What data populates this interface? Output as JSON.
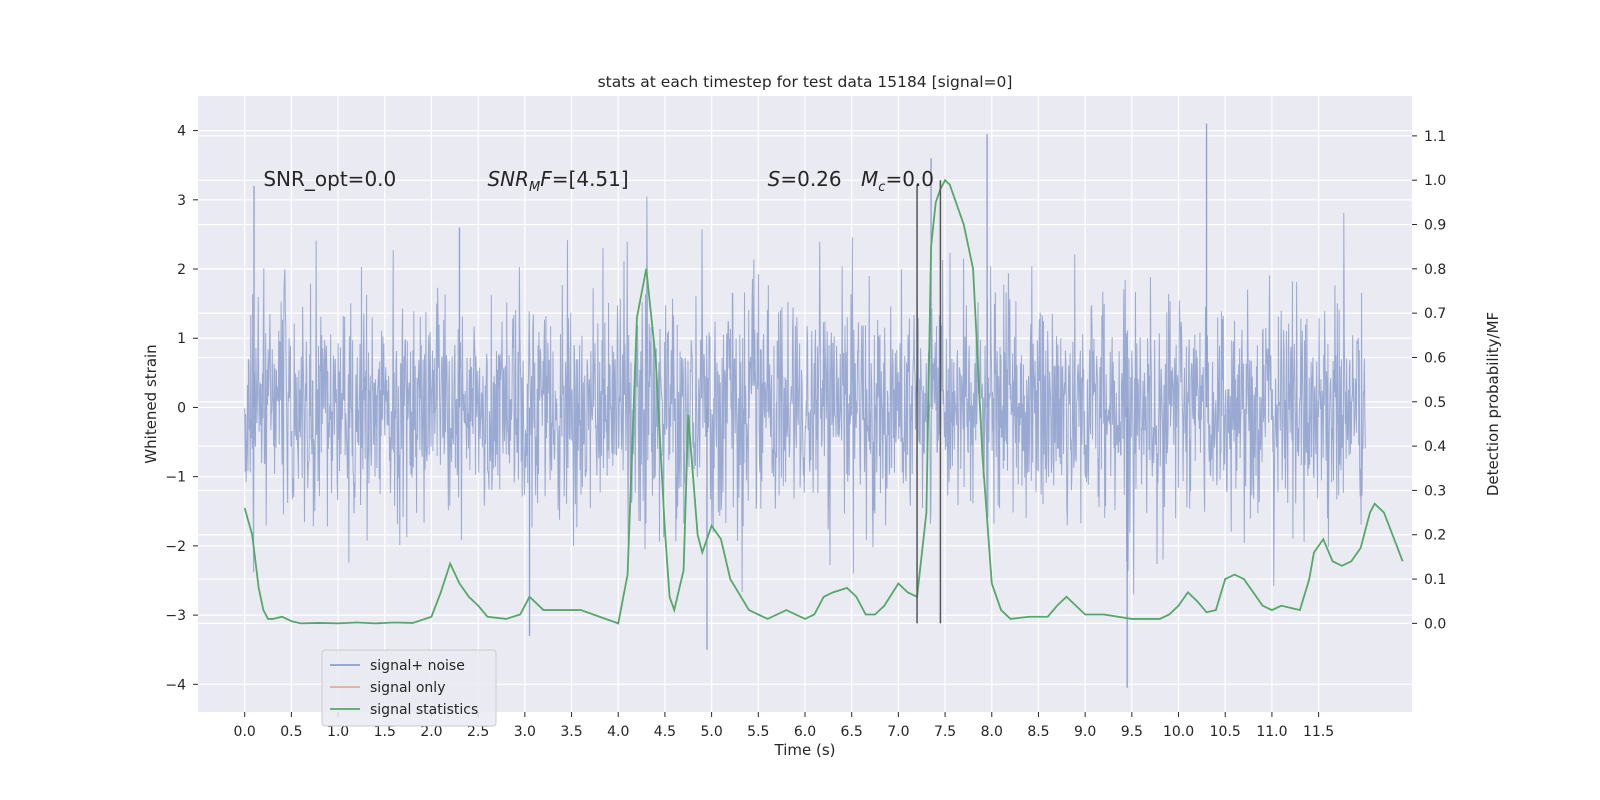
{
  "chart_data": {
    "type": "line",
    "title": "stats at each timestep for test data 15184 [signal=0]",
    "xlabel": "Time (s)",
    "ylabel_left": "Whitened strain",
    "ylabel_right": "Detection probability/MF",
    "xlim": [
      -0.5,
      12.5
    ],
    "ylim_left": [
      -4.4,
      4.5
    ],
    "ylim_right": [
      -0.2,
      1.19
    ],
    "x_ticks": [
      0.0,
      0.5,
      1.0,
      1.5,
      2.0,
      2.5,
      3.0,
      3.5,
      4.0,
      4.5,
      5.0,
      5.5,
      6.0,
      6.5,
      7.0,
      7.5,
      8.0,
      8.5,
      9.0,
      9.5,
      10.0,
      10.5,
      11.0,
      11.5
    ],
    "x_tick_labels": [
      "0.0",
      "0.5",
      "1.0",
      "1.5",
      "2.0",
      "2.5",
      "3.0",
      "3.5",
      "4.0",
      "4.5",
      "5.0",
      "5.5",
      "6.0",
      "6.5",
      "7.0",
      "7.5",
      "8.0",
      "8.5",
      "9.0",
      "9.5",
      "10.0",
      "10.5",
      "11.0",
      "11.5"
    ],
    "y_left_ticks": [
      -4,
      -3,
      -2,
      -1,
      0,
      1,
      2,
      3,
      4
    ],
    "y_left_tick_labels": [
      "−4",
      "−3",
      "−2",
      "−1",
      "0",
      "1",
      "2",
      "3",
      "4"
    ],
    "y_right_ticks": [
      0.0,
      0.1,
      0.2,
      0.3,
      0.4,
      0.5,
      0.6,
      0.7,
      0.8,
      0.9,
      1.0,
      1.1
    ],
    "y_right_tick_labels": [
      "0.0",
      "0.1",
      "0.2",
      "0.3",
      "0.4",
      "0.5",
      "0.6",
      "0.7",
      "0.8",
      "0.9",
      "1.0",
      "1.1"
    ],
    "grid": true,
    "legend_position": "lower-left",
    "series": [
      {
        "name": "signal+ noise",
        "axis": "left",
        "color": "#8c9ecb",
        "noise_sigma": 0.8,
        "x_range": [
          0.0,
          12.0
        ],
        "notable_peaks": [
          [
            0.1,
            3.2
          ],
          [
            2.3,
            2.6
          ],
          [
            3.05,
            -3.3
          ],
          [
            4.95,
            -3.5
          ],
          [
            7.35,
            3.6
          ],
          [
            7.95,
            3.95
          ],
          [
            9.45,
            -4.05
          ],
          [
            10.3,
            4.1
          ]
        ]
      },
      {
        "name": "signal only",
        "axis": "left",
        "color": "#dd8452",
        "values": []
      },
      {
        "name": "signal statistics",
        "axis": "right",
        "color": "#55a868",
        "points": [
          [
            0.0,
            0.26
          ],
          [
            0.08,
            0.2
          ],
          [
            0.15,
            0.08
          ],
          [
            0.2,
            0.03
          ],
          [
            0.25,
            0.01
          ],
          [
            0.3,
            0.01
          ],
          [
            0.4,
            0.015
          ],
          [
            0.5,
            0.005
          ],
          [
            0.6,
            0.0
          ],
          [
            0.8,
            0.001
          ],
          [
            1.0,
            0.0
          ],
          [
            1.2,
            0.002
          ],
          [
            1.4,
            0.0
          ],
          [
            1.6,
            0.002
          ],
          [
            1.8,
            0.001
          ],
          [
            2.0,
            0.015
          ],
          [
            2.1,
            0.07
          ],
          [
            2.2,
            0.135
          ],
          [
            2.3,
            0.09
          ],
          [
            2.4,
            0.06
          ],
          [
            2.5,
            0.04
          ],
          [
            2.6,
            0.015
          ],
          [
            2.8,
            0.01
          ],
          [
            2.95,
            0.02
          ],
          [
            3.05,
            0.06
          ],
          [
            3.2,
            0.03
          ],
          [
            3.4,
            0.03
          ],
          [
            3.6,
            0.03
          ],
          [
            3.8,
            0.015
          ],
          [
            4.0,
            0.0
          ],
          [
            4.1,
            0.11
          ],
          [
            4.2,
            0.69
          ],
          [
            4.3,
            0.8
          ],
          [
            4.4,
            0.6
          ],
          [
            4.5,
            0.21
          ],
          [
            4.55,
            0.06
          ],
          [
            4.6,
            0.03
          ],
          [
            4.7,
            0.12
          ],
          [
            4.75,
            0.47
          ],
          [
            4.85,
            0.2
          ],
          [
            4.9,
            0.16
          ],
          [
            5.0,
            0.22
          ],
          [
            5.1,
            0.19
          ],
          [
            5.2,
            0.1
          ],
          [
            5.4,
            0.03
          ],
          [
            5.6,
            0.01
          ],
          [
            5.8,
            0.03
          ],
          [
            6.0,
            0.01
          ],
          [
            6.1,
            0.02
          ],
          [
            6.2,
            0.06
          ],
          [
            6.3,
            0.07
          ],
          [
            6.45,
            0.08
          ],
          [
            6.55,
            0.06
          ],
          [
            6.65,
            0.02
          ],
          [
            6.75,
            0.02
          ],
          [
            6.85,
            0.04
          ],
          [
            7.0,
            0.09
          ],
          [
            7.1,
            0.07
          ],
          [
            7.2,
            0.06
          ],
          [
            7.3,
            0.25
          ],
          [
            7.35,
            0.85
          ],
          [
            7.4,
            0.95
          ],
          [
            7.45,
            0.98
          ],
          [
            7.5,
            1.0
          ],
          [
            7.55,
            0.99
          ],
          [
            7.6,
            0.96
          ],
          [
            7.7,
            0.9
          ],
          [
            7.8,
            0.8
          ],
          [
            7.9,
            0.38
          ],
          [
            8.0,
            0.09
          ],
          [
            8.1,
            0.03
          ],
          [
            8.2,
            0.01
          ],
          [
            8.4,
            0.015
          ],
          [
            8.6,
            0.015
          ],
          [
            8.7,
            0.04
          ],
          [
            8.8,
            0.06
          ],
          [
            8.9,
            0.04
          ],
          [
            9.0,
            0.02
          ],
          [
            9.2,
            0.02
          ],
          [
            9.5,
            0.01
          ],
          [
            9.8,
            0.01
          ],
          [
            9.9,
            0.02
          ],
          [
            10.0,
            0.04
          ],
          [
            10.1,
            0.07
          ],
          [
            10.2,
            0.05
          ],
          [
            10.3,
            0.025
          ],
          [
            10.4,
            0.03
          ],
          [
            10.5,
            0.1
          ],
          [
            10.6,
            0.11
          ],
          [
            10.7,
            0.1
          ],
          [
            10.8,
            0.07
          ],
          [
            10.9,
            0.04
          ],
          [
            11.0,
            0.03
          ],
          [
            11.1,
            0.04
          ],
          [
            11.2,
            0.035
          ],
          [
            11.3,
            0.03
          ],
          [
            11.4,
            0.1
          ],
          [
            11.45,
            0.16
          ],
          [
            11.55,
            0.19
          ],
          [
            11.65,
            0.14
          ],
          [
            11.75,
            0.13
          ],
          [
            11.85,
            0.14
          ],
          [
            11.95,
            0.17
          ],
          [
            12.05,
            0.25
          ],
          [
            12.1,
            0.27
          ],
          [
            12.2,
            0.25
          ],
          [
            12.4,
            0.14
          ]
        ]
      }
    ],
    "vertical_lines": [
      {
        "x": 7.2,
        "y_top_right": 0.99,
        "color": "#555555"
      },
      {
        "x": 7.45,
        "y_top_right": 1.0,
        "color": "#555555"
      }
    ],
    "annotations": [
      {
        "id": "snr-opt",
        "text": "SNR_opt=0.0",
        "x": 0.2,
        "y": 3.3
      },
      {
        "id": "snr-mf",
        "label_main": "SNR",
        "label_sub": "M",
        "label_tail": "F",
        "value": "=[4.51]",
        "x": 2.6,
        "y": 3.3
      },
      {
        "id": "s-stat",
        "label": "S",
        "value": "=0.26",
        "x": 5.6,
        "y": 3.3
      },
      {
        "id": "mc",
        "label_main": "M",
        "label_sub": "c",
        "value": "=0.0",
        "x": 6.6,
        "y": 3.3
      }
    ]
  }
}
